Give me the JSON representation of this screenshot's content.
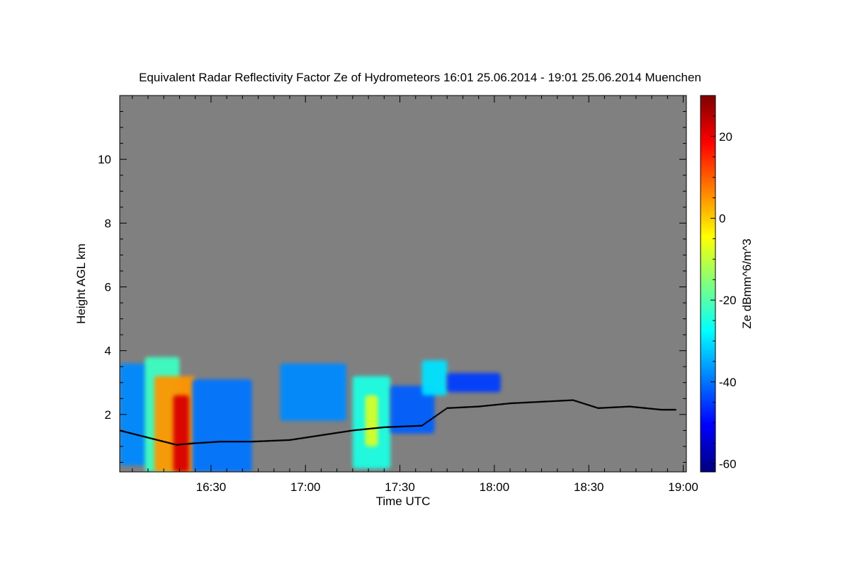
{
  "chart_data": {
    "type": "heatmap",
    "title": "Equivalent Radar Reflectivity Factor Ze of Hydrometeors   16:01 25.06.2014 - 19:01 25.06.2014 Muenchen",
    "xlabel": "Time UTC",
    "ylabel": "Height AGL km",
    "x_ticks": [
      {
        "value": 29,
        "label": "16:30"
      },
      {
        "value": 59,
        "label": "17:00"
      },
      {
        "value": 89,
        "label": "17:30"
      },
      {
        "value": 119,
        "label": "18:00"
      },
      {
        "value": 149,
        "label": "18:30"
      },
      {
        "value": 179,
        "label": "19:00"
      }
    ],
    "xlim": [
      0,
      180
    ],
    "y_ticks": [
      2,
      4,
      6,
      8,
      10
    ],
    "ylim": [
      0.2,
      12
    ],
    "colorbar": {
      "label": "Ze dBmm^6/m^3",
      "ticks": [
        20,
        0,
        -20,
        -40,
        -60
      ],
      "range": [
        -62,
        30
      ],
      "colors": [
        "#00007f",
        "#0000ff",
        "#007fff",
        "#00ffff",
        "#7fff7f",
        "#ffff00",
        "#ff7f00",
        "#ff0000",
        "#7f0000"
      ]
    },
    "no_signal_color": "#808080",
    "echo_regions": [
      {
        "t_start": 0,
        "t_end": 9,
        "h_bottom": 0.4,
        "h_top": 3.6,
        "ze": -38
      },
      {
        "t_start": 8,
        "t_end": 19,
        "h_bottom": 0.2,
        "h_top": 3.8,
        "ze": -22
      },
      {
        "t_start": 11,
        "t_end": 24,
        "h_bottom": 0.2,
        "h_top": 3.2,
        "ze": 5
      },
      {
        "t_start": 17,
        "t_end": 22,
        "h_bottom": 0.2,
        "h_top": 2.6,
        "ze": 22
      },
      {
        "t_start": 23,
        "t_end": 42,
        "h_bottom": 0.2,
        "h_top": 3.1,
        "ze": -40
      },
      {
        "t_start": 51,
        "t_end": 72,
        "h_bottom": 1.8,
        "h_top": 3.6,
        "ze": -38
      },
      {
        "t_start": 74,
        "t_end": 86,
        "h_bottom": 0.3,
        "h_top": 3.2,
        "ze": -25
      },
      {
        "t_start": 78,
        "t_end": 82,
        "h_bottom": 1.0,
        "h_top": 2.6,
        "ze": -8
      },
      {
        "t_start": 86,
        "t_end": 100,
        "h_bottom": 1.4,
        "h_top": 2.9,
        "ze": -42
      },
      {
        "t_start": 96,
        "t_end": 104,
        "h_bottom": 2.6,
        "h_top": 3.7,
        "ze": -30
      },
      {
        "t_start": 104,
        "t_end": 121,
        "h_bottom": 2.7,
        "h_top": 3.3,
        "ze": -45
      }
    ],
    "cloud_base": [
      {
        "t": 0,
        "h": 1.5
      },
      {
        "t": 10,
        "h": 1.25
      },
      {
        "t": 18,
        "h": 1.05
      },
      {
        "t": 24,
        "h": 1.1
      },
      {
        "t": 32,
        "h": 1.15
      },
      {
        "t": 42,
        "h": 1.15
      },
      {
        "t": 54,
        "h": 1.2
      },
      {
        "t": 64,
        "h": 1.35
      },
      {
        "t": 74,
        "h": 1.5
      },
      {
        "t": 84,
        "h": 1.6
      },
      {
        "t": 96,
        "h": 1.65
      },
      {
        "t": 104,
        "h": 2.2
      },
      {
        "t": 114,
        "h": 2.25
      },
      {
        "t": 124,
        "h": 2.35
      },
      {
        "t": 134,
        "h": 2.4
      },
      {
        "t": 144,
        "h": 2.45
      },
      {
        "t": 152,
        "h": 2.2
      },
      {
        "t": 162,
        "h": 2.25
      },
      {
        "t": 172,
        "h": 2.15
      },
      {
        "t": 177,
        "h": 2.15
      }
    ]
  }
}
